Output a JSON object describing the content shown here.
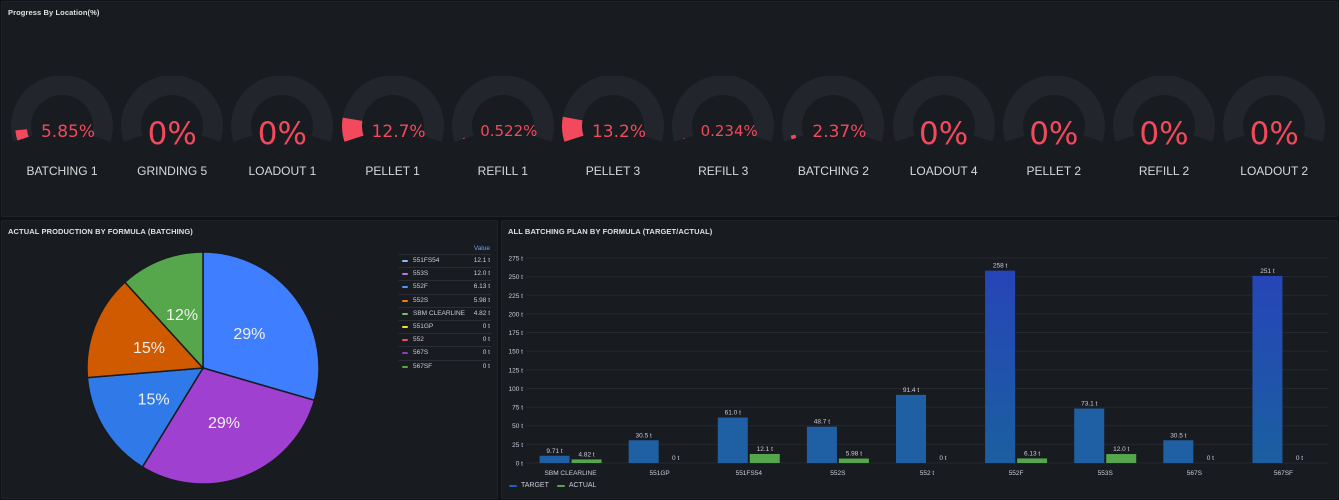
{
  "gauges_panel": {
    "title": "Progress By Location(%)",
    "items": [
      {
        "label": "BATCHING 1",
        "value": 5.85,
        "display": "5.85%"
      },
      {
        "label": "GRINDING 5",
        "value": 0,
        "display": "0%"
      },
      {
        "label": "LOADOUT 1",
        "value": 0,
        "display": "0%"
      },
      {
        "label": "PELLET 1",
        "value": 12.7,
        "display": "12.7%"
      },
      {
        "label": "REFILL 1",
        "value": 0.522,
        "display": "0.522%"
      },
      {
        "label": "PELLET 3",
        "value": 13.2,
        "display": "13.2%"
      },
      {
        "label": "REFILL 3",
        "value": 0.234,
        "display": "0.234%"
      },
      {
        "label": "BATCHING 2",
        "value": 2.37,
        "display": "2.37%"
      },
      {
        "label": "LOADOUT 4",
        "value": 0,
        "display": "0%"
      },
      {
        "label": "PELLET 2",
        "value": 0,
        "display": "0%"
      },
      {
        "label": "REFILL 2",
        "value": 0,
        "display": "0%"
      },
      {
        "label": "LOADOUT 2",
        "value": 0,
        "display": "0%"
      }
    ],
    "colors": {
      "track": "#22252b",
      "value": "#f2495c"
    }
  },
  "pie_panel": {
    "title": "ACTUAL PRODUCTION BY FORMULA (BATCHING)",
    "legend_header": "Value",
    "legend": [
      {
        "name": "551FS54",
        "value": "12.1 t",
        "color": "#8ab8ff"
      },
      {
        "name": "553S",
        "value": "12.0 t",
        "color": "#b877d9"
      },
      {
        "name": "552F",
        "value": "6.13 t",
        "color": "#5794f2"
      },
      {
        "name": "552S",
        "value": "5.98 t",
        "color": "#ff780a"
      },
      {
        "name": "SBM CLEARLINE",
        "value": "4.82 t",
        "color": "#73bf69"
      },
      {
        "name": "551GP",
        "value": "0 t",
        "color": "#fade2a"
      },
      {
        "name": "552",
        "value": "0 t",
        "color": "#f2495c"
      },
      {
        "name": "567S",
        "value": "0 t",
        "color": "#8f3bb8"
      },
      {
        "name": "567SF",
        "value": "0 t",
        "color": "#56a64b"
      }
    ]
  },
  "bars_panel": {
    "title": "ALL BATCHING PLAN BY FORMULA (TARGET/ACTUAL)",
    "legend": [
      {
        "name": "TARGET",
        "color": "#1f60c4"
      },
      {
        "name": "ACTUAL",
        "color": "#56a64b"
      }
    ]
  },
  "chart_data": [
    {
      "type": "pie",
      "title": "ACTUAL PRODUCTION BY FORMULA (BATCHING)",
      "slices": [
        {
          "name": "551FS54",
          "value": 12.1,
          "label": "29%",
          "color": "#3f7fff"
        },
        {
          "name": "553S",
          "value": 12.0,
          "label": "29%",
          "color": "#a040d0"
        },
        {
          "name": "552F",
          "value": 6.13,
          "label": "15%",
          "color": "#2f7ae8"
        },
        {
          "name": "552S",
          "value": 5.98,
          "label": "15%",
          "color": "#d05a00"
        },
        {
          "name": "SBM CLEARLINE",
          "value": 4.82,
          "label": "12%",
          "color": "#56a64b"
        }
      ]
    },
    {
      "type": "bar",
      "title": "ALL BATCHING PLAN BY FORMULA (TARGET/ACTUAL)",
      "categories": [
        "SBM CLEARLINE",
        "551GP",
        "551FS54",
        "552S",
        "552 t",
        "552F",
        "553S",
        "567S",
        "567SF"
      ],
      "series": [
        {
          "name": "TARGET",
          "values": [
            9.71,
            30.5,
            61.0,
            48.7,
            91.4,
            258,
            73.1,
            30.5,
            251
          ],
          "labels": [
            "9.71 t",
            "30.5 t",
            "61.0 t",
            "48.7 t",
            "91.4 t",
            "258 t",
            "73.1 t",
            "30.5 t",
            "251 t"
          ]
        },
        {
          "name": "ACTUAL",
          "values": [
            4.82,
            0,
            12.1,
            5.98,
            0,
            6.13,
            12.0,
            0,
            0
          ],
          "labels": [
            "4.82 t",
            "0 t",
            "12.1 t",
            "5.98 t",
            "0 t",
            "6.13 t",
            "12.0 t",
            "0 t",
            "0 t"
          ]
        }
      ],
      "ylim": [
        0,
        275
      ],
      "yticks": [
        "0 t",
        "25 t",
        "50 t",
        "75 t",
        "100 t",
        "125 t",
        "150 t",
        "175 t",
        "200 t",
        "225 t",
        "250 t",
        "275 t"
      ],
      "grid": true,
      "legend_position": "bottom-left"
    }
  ]
}
